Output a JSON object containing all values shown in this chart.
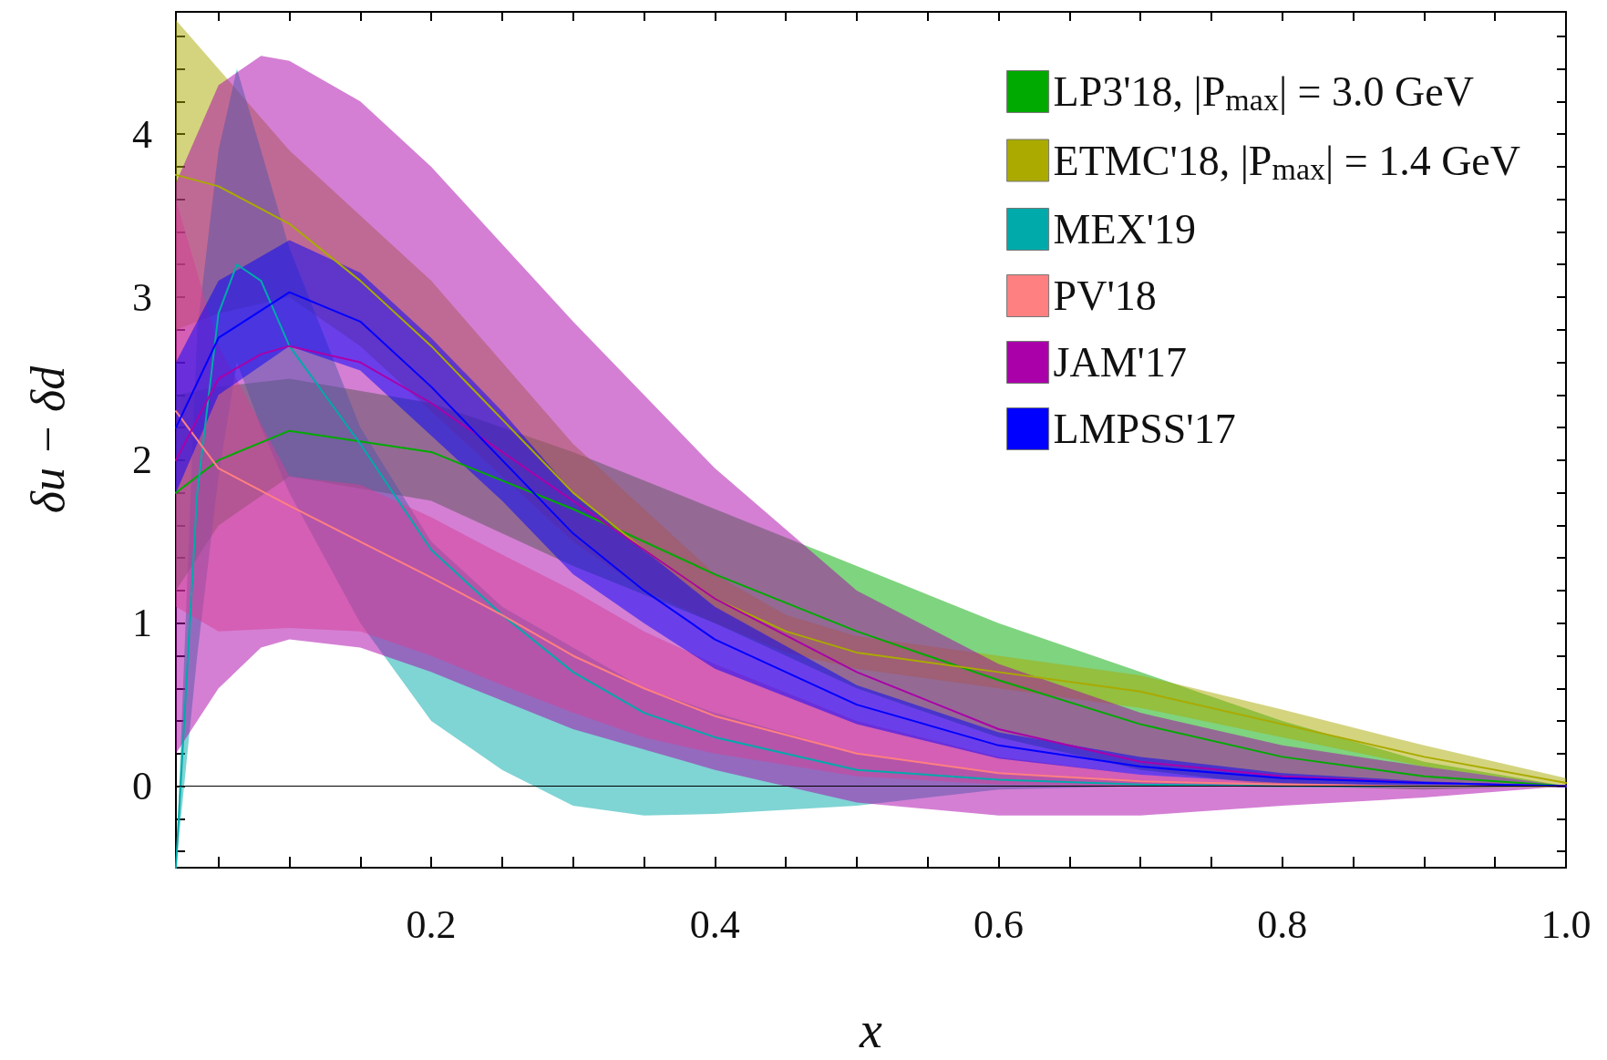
{
  "chart_data": {
    "type": "line",
    "xlabel": "x",
    "ylabel": "δu − δd",
    "xlim": [
      0.02,
      1.0
    ],
    "ylim": [
      -0.5,
      4.75
    ],
    "xticks": [
      {
        "value": 0.05,
        "label": null
      },
      {
        "value": 0.1,
        "label": null
      },
      {
        "value": 0.15,
        "label": null
      },
      0.2,
      {
        "value": 0.25,
        "label": null
      },
      {
        "value": 0.3,
        "label": null
      },
      {
        "value": 0.35,
        "label": null
      },
      0.4,
      {
        "value": 0.45,
        "label": null
      },
      {
        "value": 0.5,
        "label": null
      },
      {
        "value": 0.55,
        "label": null
      },
      0.6,
      {
        "value": 0.65,
        "label": null
      },
      {
        "value": 0.7,
        "label": null
      },
      {
        "value": 0.75,
        "label": null
      },
      0.8,
      {
        "value": 0.85,
        "label": null
      },
      {
        "value": 0.9,
        "label": null
      },
      {
        "value": 0.95,
        "label": null
      },
      {
        "value": 1.0,
        "label": "1.0"
      }
    ],
    "yticks": [
      {
        "value": -0.4,
        "label": null
      },
      {
        "value": -0.2,
        "label": null
      },
      0,
      {
        "value": 0.2,
        "label": null
      },
      {
        "value": 0.4,
        "label": null
      },
      {
        "value": 0.6,
        "label": null
      },
      {
        "value": 0.8,
        "label": null
      },
      1,
      {
        "value": 1.2,
        "label": null
      },
      {
        "value": 1.4,
        "label": null
      },
      {
        "value": 1.6,
        "label": null
      },
      {
        "value": 1.8,
        "label": null
      },
      2,
      {
        "value": 2.2,
        "label": null
      },
      {
        "value": 2.4,
        "label": null
      },
      {
        "value": 2.6,
        "label": null
      },
      {
        "value": 2.8,
        "label": null
      },
      3,
      {
        "value": 3.2,
        "label": null
      },
      {
        "value": 3.4,
        "label": null
      },
      {
        "value": 3.6,
        "label": null
      },
      {
        "value": 3.8,
        "label": null
      },
      4,
      {
        "value": 4.2,
        "label": null
      },
      {
        "value": 4.4,
        "label": null
      },
      {
        "value": 4.6,
        "label": null
      }
    ],
    "legend": "top right",
    "marker": "none",
    "line_style": "solid",
    "ref_lines": [
      {
        "axis": "y",
        "value": 0,
        "color": "#000000"
      }
    ],
    "series": [
      {
        "name": "LP3'18, |P$_{max}$| = 3.0 GeV",
        "color": "#00aa00",
        "x": [
          0.02,
          0.05,
          0.1,
          0.2,
          0.3,
          0.4,
          0.5,
          0.6,
          0.7,
          0.8,
          0.9,
          1.0
        ],
        "values": [
          1.8,
          2.0,
          2.18,
          2.05,
          1.7,
          1.3,
          0.95,
          0.65,
          0.38,
          0.18,
          0.06,
          0
        ],
        "lower": [
          1.2,
          1.6,
          1.9,
          1.75,
          1.35,
          1.0,
          0.6,
          0.3,
          0.1,
          0,
          -0.02,
          0
        ],
        "upper": [
          2.4,
          2.45,
          2.5,
          2.35,
          2.05,
          1.7,
          1.35,
          1.0,
          0.7,
          0.4,
          0.15,
          0
        ]
      },
      {
        "name": "ETMC'18, |P$_{max}$| = 1.4 GeV",
        "color": "#aaaa00",
        "x": [
          0.02,
          0.05,
          0.1,
          0.15,
          0.2,
          0.25,
          0.3,
          0.35,
          0.4,
          0.45,
          0.5,
          0.6,
          0.7,
          0.8,
          0.9,
          1.0
        ],
        "values": [
          3.75,
          3.68,
          3.45,
          3.1,
          2.7,
          2.25,
          1.8,
          1.45,
          1.15,
          0.95,
          0.82,
          0.7,
          0.58,
          0.38,
          0.18,
          0.02
        ],
        "lower": [
          2.8,
          2.9,
          3.0,
          2.7,
          2.3,
          1.9,
          1.5,
          1.2,
          1.0,
          0.82,
          0.72,
          0.6,
          0.48,
          0.3,
          0.12,
          0
        ],
        "upper": [
          4.7,
          4.4,
          3.9,
          3.5,
          3.1,
          2.6,
          2.1,
          1.7,
          1.3,
          1.05,
          0.92,
          0.8,
          0.68,
          0.47,
          0.25,
          0.05
        ]
      },
      {
        "name": "MEX'19",
        "color": "#00aaaa",
        "x": [
          0.02,
          0.035,
          0.05,
          0.063,
          0.08,
          0.1,
          0.15,
          0.2,
          0.25,
          0.3,
          0.35,
          0.4,
          0.5,
          0.6,
          0.7,
          0.8,
          1.0
        ],
        "values": [
          -0.5,
          1.8,
          2.9,
          3.2,
          3.1,
          2.7,
          2.1,
          1.45,
          1.05,
          0.7,
          0.45,
          0.3,
          0.1,
          0.04,
          0.01,
          0,
          0
        ],
        "lower": [
          -0.5,
          0.8,
          1.9,
          2.6,
          2.2,
          1.8,
          1.0,
          0.4,
          0.1,
          -0.12,
          -0.18,
          -0.17,
          -0.12,
          -0.02,
          0,
          0,
          0
        ],
        "upper": [
          -0.5,
          2.8,
          3.9,
          4.4,
          3.9,
          3.3,
          2.2,
          1.5,
          1.1,
          0.85,
          0.6,
          0.45,
          0.2,
          0.08,
          0.03,
          0.01,
          0
        ]
      },
      {
        "name": "PV'18",
        "color": "#ff8080",
        "x": [
          0.02,
          0.05,
          0.1,
          0.15,
          0.2,
          0.25,
          0.3,
          0.35,
          0.4,
          0.5,
          0.6,
          0.7,
          0.8,
          0.9,
          1.0
        ],
        "values": [
          2.3,
          1.95,
          1.72,
          1.5,
          1.28,
          1.05,
          0.8,
          0.6,
          0.43,
          0.2,
          0.08,
          0.03,
          0.01,
          0,
          0
        ],
        "lower": [
          1.1,
          0.95,
          0.97,
          0.95,
          0.8,
          0.62,
          0.45,
          0.3,
          0.2,
          0.06,
          0.01,
          0,
          0,
          0,
          0
        ],
        "upper": [
          3.6,
          2.7,
          1.9,
          1.85,
          1.65,
          1.42,
          1.2,
          0.95,
          0.75,
          0.4,
          0.18,
          0.07,
          0.02,
          0,
          0
        ]
      },
      {
        "name": "JAM'17",
        "color": "#aa00aa",
        "x": [
          0.02,
          0.05,
          0.08,
          0.1,
          0.15,
          0.2,
          0.3,
          0.4,
          0.5,
          0.6,
          0.7,
          0.8,
          0.9,
          1.0
        ],
        "values": [
          2.0,
          2.5,
          2.65,
          2.7,
          2.6,
          2.35,
          1.75,
          1.15,
          0.7,
          0.35,
          0.15,
          0.06,
          0.02,
          0
        ],
        "lower": [
          0.2,
          0.6,
          0.85,
          0.9,
          0.85,
          0.7,
          0.35,
          0.1,
          -0.1,
          -0.18,
          -0.18,
          -0.12,
          -0.07,
          0
        ],
        "upper": [
          3.7,
          4.3,
          4.48,
          4.45,
          4.2,
          3.8,
          2.85,
          1.95,
          1.2,
          0.75,
          0.45,
          0.25,
          0.12,
          0
        ]
      },
      {
        "name": "LMPSS'17",
        "color": "#0000ff",
        "x": [
          0.02,
          0.05,
          0.1,
          0.15,
          0.2,
          0.25,
          0.3,
          0.35,
          0.4,
          0.5,
          0.6,
          0.7,
          0.8,
          0.9,
          1.0
        ],
        "values": [
          2.2,
          2.75,
          3.03,
          2.85,
          2.45,
          2.0,
          1.55,
          1.2,
          0.9,
          0.5,
          0.25,
          0.12,
          0.05,
          0.02,
          0
        ],
        "lower": [
          1.8,
          2.4,
          2.7,
          2.55,
          2.15,
          1.75,
          1.3,
          1.0,
          0.72,
          0.38,
          0.17,
          0.07,
          0.02,
          0,
          0
        ],
        "upper": [
          2.6,
          3.1,
          3.35,
          3.15,
          2.75,
          2.3,
          1.8,
          1.45,
          1.1,
          0.62,
          0.33,
          0.18,
          0.08,
          0.03,
          0
        ]
      }
    ]
  }
}
